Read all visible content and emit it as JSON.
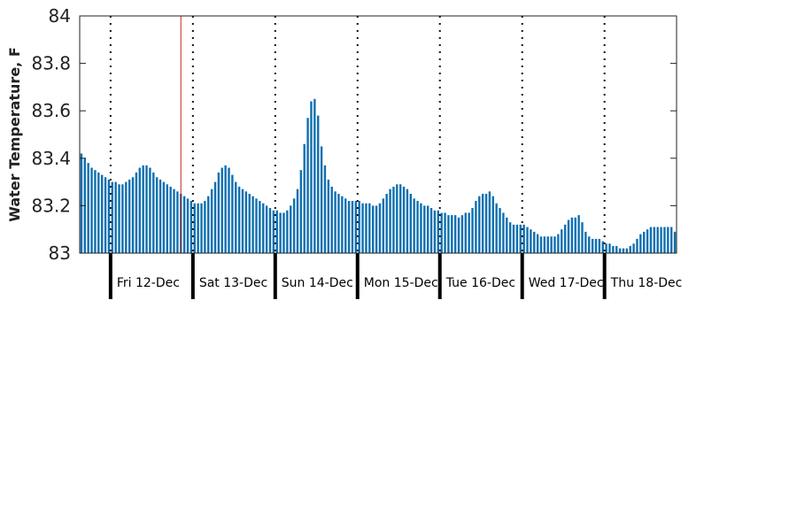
{
  "chart_data": {
    "type": "bar",
    "title": "",
    "xlabel": "",
    "ylabel": "Water Temperature, F",
    "ylim": [
      83,
      84
    ],
    "yticks": [
      83,
      83.2,
      83.4,
      83.6,
      83.8,
      84
    ],
    "ytick_labels": [
      "83",
      "83.2",
      "83.4",
      "83.6",
      "83.8",
      "84"
    ],
    "day_labels": [
      "Fri 12-Dec",
      "Sat 13-Dec",
      "Sun 14-Dec",
      "Mon 15-Dec",
      "Tue 16-Dec",
      "Wed 17-Dec",
      "Thu 18-Dec"
    ],
    "hours_before_first_midnight": 9,
    "hours_per_bar": 1,
    "current_time_hour": 29.5,
    "bar_color": "#0e6fb0",
    "now_line_color": "#cc2222",
    "grid": false,
    "values": [
      83.42,
      83.4,
      83.38,
      83.36,
      83.35,
      83.34,
      83.33,
      83.32,
      83.31,
      83.3,
      83.3,
      83.29,
      83.29,
      83.3,
      83.31,
      83.32,
      83.34,
      83.36,
      83.37,
      83.37,
      83.36,
      83.34,
      83.32,
      83.31,
      83.3,
      83.29,
      83.28,
      83.27,
      83.26,
      83.25,
      83.24,
      83.23,
      83.22,
      83.21,
      83.21,
      83.21,
      83.22,
      83.24,
      83.27,
      83.3,
      83.34,
      83.36,
      83.37,
      83.36,
      83.33,
      83.3,
      83.28,
      83.27,
      83.26,
      83.25,
      83.24,
      83.23,
      83.22,
      83.21,
      83.2,
      83.19,
      83.18,
      83.18,
      83.17,
      83.17,
      83.18,
      83.2,
      83.23,
      83.27,
      83.35,
      83.46,
      83.57,
      83.64,
      83.65,
      83.58,
      83.45,
      83.37,
      83.31,
      83.28,
      83.26,
      83.25,
      83.24,
      83.23,
      83.22,
      83.22,
      83.22,
      83.22,
      83.21,
      83.21,
      83.21,
      83.2,
      83.2,
      83.21,
      83.23,
      83.25,
      83.27,
      83.28,
      83.29,
      83.29,
      83.28,
      83.27,
      83.25,
      83.23,
      83.22,
      83.21,
      83.2,
      83.2,
      83.19,
      83.18,
      83.18,
      83.17,
      83.17,
      83.16,
      83.16,
      83.16,
      83.15,
      83.16,
      83.17,
      83.17,
      83.19,
      83.22,
      83.24,
      83.25,
      83.25,
      83.26,
      83.24,
      83.21,
      83.19,
      83.17,
      83.15,
      83.13,
      83.12,
      83.12,
      83.12,
      83.12,
      83.11,
      83.1,
      83.09,
      83.08,
      83.07,
      83.07,
      83.07,
      83.07,
      83.07,
      83.08,
      83.1,
      83.12,
      83.14,
      83.15,
      83.15,
      83.16,
      83.13,
      83.09,
      83.07,
      83.06,
      83.06,
      83.06,
      83.05,
      83.04,
      83.04,
      83.03,
      83.03,
      83.02,
      83.02,
      83.02,
      83.03,
      83.04,
      83.06,
      83.08,
      83.09,
      83.1,
      83.11,
      83.11,
      83.11,
      83.11,
      83.11,
      83.11,
      83.11,
      83.09
    ]
  }
}
